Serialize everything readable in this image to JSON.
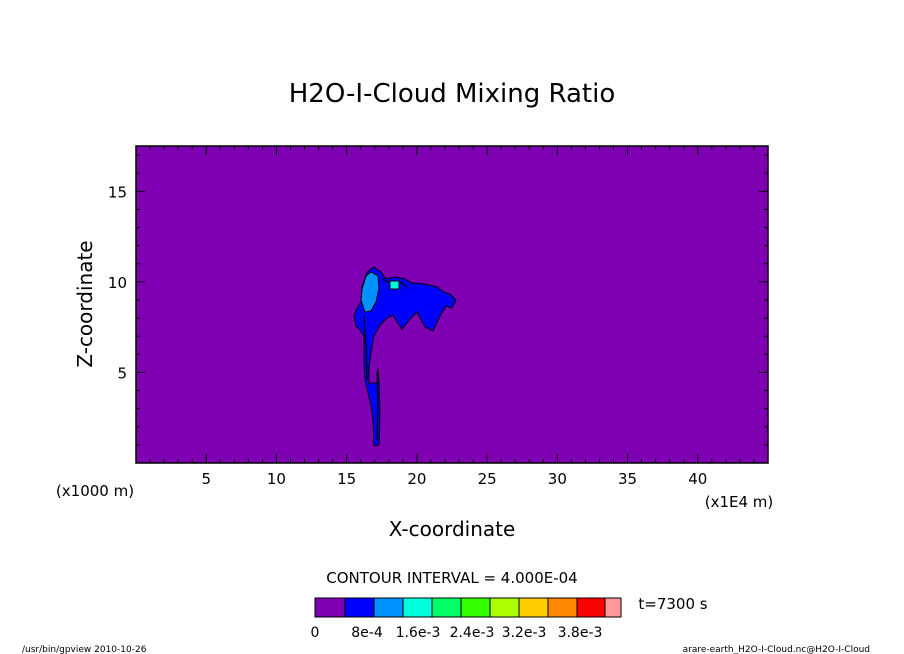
{
  "chart_data": {
    "type": "heatmap",
    "title": "H2O-I-Cloud Mixing Ratio",
    "xlabel": "X-coordinate",
    "ylabel": "Z-coordinate",
    "x_unit_left": "(x1000 m)",
    "x_unit_right": "(x1E4 m)",
    "xlim": [
      0,
      45
    ],
    "ylim": [
      0,
      17.5
    ],
    "x_ticks": [
      5,
      10,
      15,
      20,
      25,
      30,
      35,
      40
    ],
    "y_ticks": [
      5,
      10,
      15
    ],
    "contour_interval": "CONTOUR INTERVAL = 4.000E-04",
    "time_label": "t=7300 s",
    "colorbar": {
      "colors": [
        "#7f00b2",
        "#0000ff",
        "#0093ff",
        "#00ffdd",
        "#00ff66",
        "#33ff00",
        "#aaff00",
        "#ffcc00",
        "#ff8800",
        "#ff0000",
        "#ff9999"
      ],
      "tick_labels": [
        "0",
        "8e-4",
        "1.6e-3",
        "2.4e-3",
        "3.2e-3",
        "3.8e-3"
      ]
    },
    "background_color": "#7f00b2",
    "cloud_levels": [
      {
        "level": "4e-4 to 8e-4",
        "color": "#0000ff",
        "x_range": [
          15.5,
          22.7
        ],
        "z_range": [
          1,
          11
        ]
      },
      {
        "level": "8e-4 to 1.2e-3",
        "color": "#0093ff",
        "x_range": [
          16.3,
          17.2
        ],
        "z_range": [
          8.3,
          10.8
        ]
      },
      {
        "level": "1.2e-3 to 1.6e-3",
        "color": "#00ffdd",
        "x_range": [
          18.2,
          18.6
        ],
        "z_range": [
          9.8,
          10.2
        ]
      }
    ]
  },
  "footer": {
    "left": "/usr/bin/gpview  2010-10-26",
    "right": "arare-earth_H2O-I-Cloud.nc@H2O-I-Cloud"
  }
}
